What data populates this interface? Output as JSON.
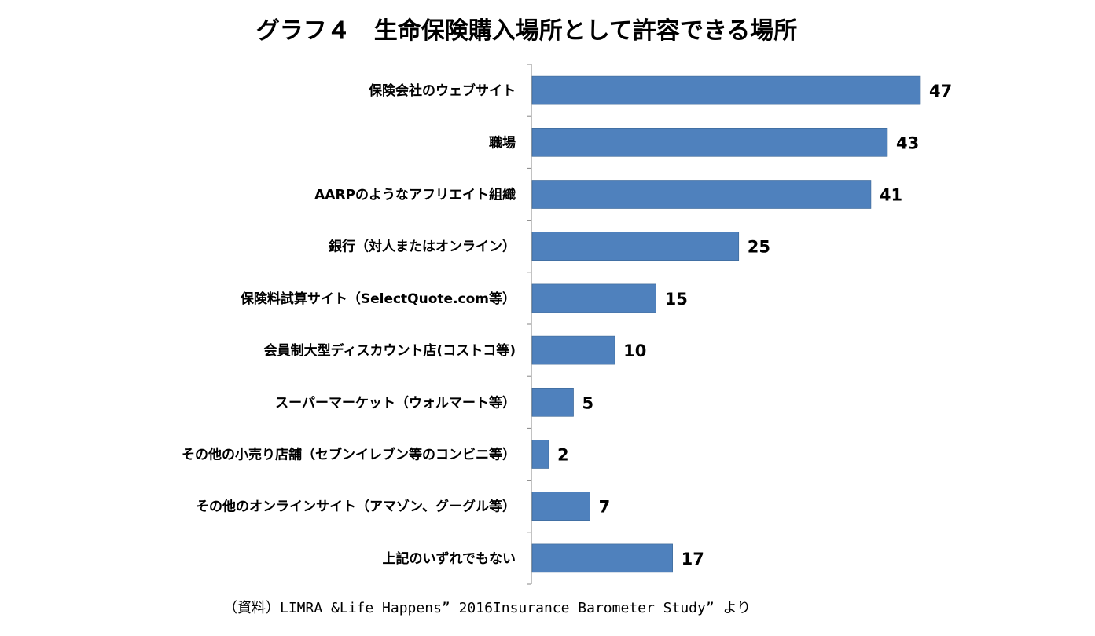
{
  "title": "グラフ４　生命保険購入場所として許容できる場所",
  "source": "（資料）LIMRA &Life Happens” 2016Insurance Barometer Study” より",
  "chart_data": {
    "type": "bar",
    "orientation": "horizontal",
    "categories": [
      "保険会社のウェブサイト",
      "職場",
      "AARPのようなアフリエイト組織",
      "銀行（対人またはオンライン）",
      "保険料試算サイト（SelectQuote.com等）",
      "会員制大型ディスカウント店(コストコ等)",
      "スーパーマーケット（ウォルマート等）",
      "その他の小売り店舗（セブンイレブン等のコンビニ等）",
      "その他のオンラインサイト（アマゾン、グーグル等）",
      "上記のいずれでもない"
    ],
    "values": [
      47,
      43,
      41,
      25,
      15,
      10,
      5,
      2,
      7,
      17
    ],
    "value_labels": [
      "47",
      "43",
      "41",
      "25",
      "15",
      "10",
      "5",
      "2",
      "7",
      "17"
    ],
    "xlim": [
      0,
      50
    ],
    "grid": false,
    "bar_color": "#4f81bd"
  }
}
